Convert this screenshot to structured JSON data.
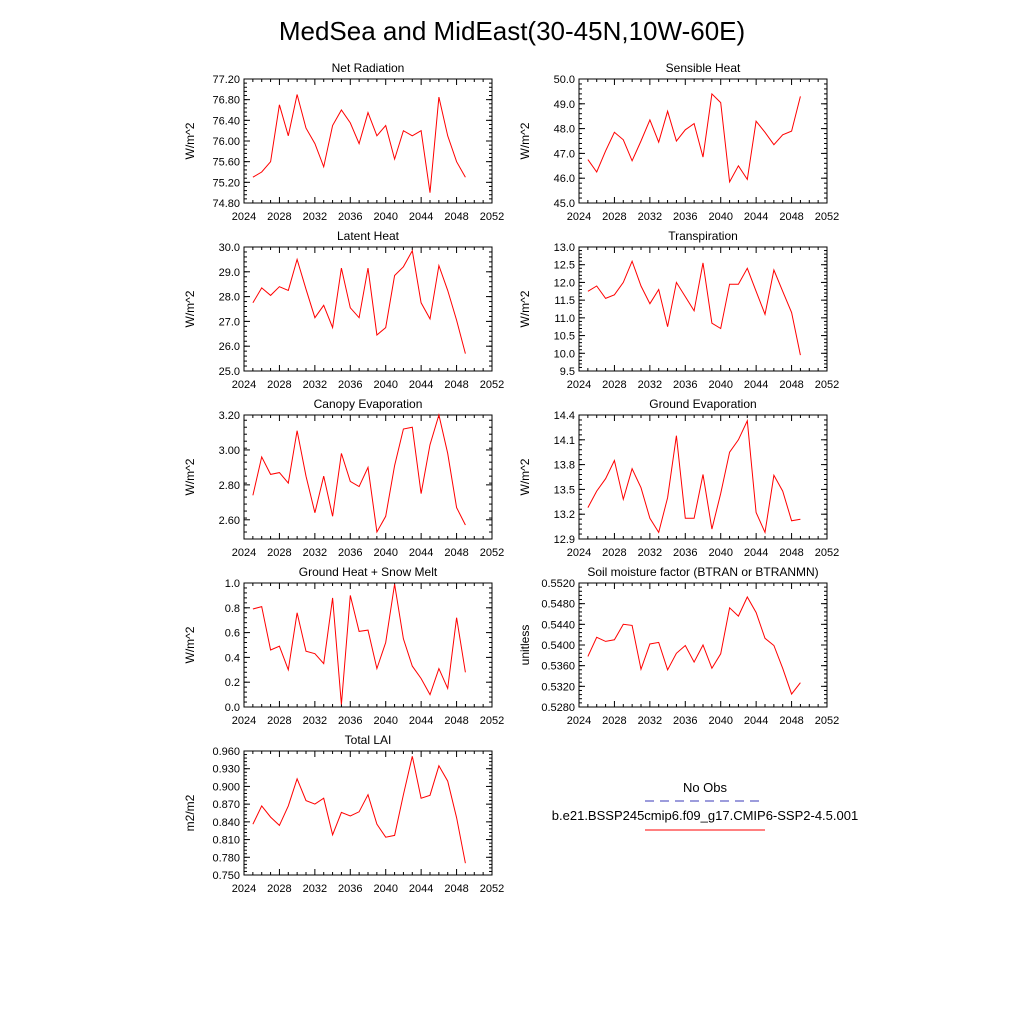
{
  "title": "MedSea and MidEast(30-45N,10W-60E)",
  "colors": {
    "model": "#ff0000",
    "obs": "#3a3ab8",
    "axis": "#000000"
  },
  "legend": {
    "obs_label": "No Obs",
    "model_label": "b.e21.BSSP245cmip6.f09_g17.CMIP6-SSP2-4.5.001"
  },
  "chart_data": [
    {
      "type": "line",
      "title": "Net Radiation",
      "ylabel": "W/m^2",
      "xlim": [
        2024,
        2052
      ],
      "ylim": [
        74.8,
        77.2
      ],
      "xticks": [
        "2024",
        "2028",
        "2032",
        "2036",
        "2040",
        "2044",
        "2048",
        "2052"
      ],
      "yticks": [
        "74.80",
        "75.20",
        "75.60",
        "76.00",
        "76.40",
        "76.80",
        "77.20"
      ],
      "x": [
        2025,
        2026,
        2027,
        2028,
        2029,
        2030,
        2031,
        2032,
        2033,
        2034,
        2035,
        2036,
        2037,
        2038,
        2039,
        2040,
        2041,
        2042,
        2043,
        2044,
        2045,
        2046,
        2047,
        2048,
        2049
      ],
      "series": [
        {
          "values": [
            75.3,
            75.4,
            75.6,
            76.7,
            76.1,
            76.9,
            76.25,
            75.95,
            75.5,
            76.3,
            76.6,
            76.35,
            75.95,
            76.55,
            76.1,
            76.3,
            75.65,
            76.2,
            76.1,
            76.2,
            75.0,
            76.85,
            76.1,
            75.6,
            75.3
          ]
        }
      ]
    },
    {
      "type": "line",
      "title": "Sensible Heat",
      "ylabel": "W/m^2",
      "xlim": [
        2024,
        2052
      ],
      "ylim": [
        45.0,
        50.0
      ],
      "xticks": [
        "2024",
        "2028",
        "2032",
        "2036",
        "2040",
        "2044",
        "2048",
        "2052"
      ],
      "yticks": [
        "45.0",
        "46.0",
        "47.0",
        "48.0",
        "49.0",
        "50.0"
      ],
      "x": [
        2025,
        2026,
        2027,
        2028,
        2029,
        2030,
        2031,
        2032,
        2033,
        2034,
        2035,
        2036,
        2037,
        2038,
        2039,
        2040,
        2041,
        2042,
        2043,
        2044,
        2045,
        2046,
        2047,
        2048,
        2049
      ],
      "series": [
        {
          "values": [
            46.75,
            46.25,
            47.1,
            47.85,
            47.55,
            46.7,
            47.5,
            48.35,
            47.45,
            48.7,
            47.5,
            47.95,
            48.2,
            46.85,
            49.4,
            49.05,
            45.85,
            46.5,
            45.95,
            48.3,
            47.85,
            47.35,
            47.75,
            47.9,
            49.3
          ]
        }
      ]
    },
    {
      "type": "line",
      "title": "Latent Heat",
      "ylabel": "W/m^2",
      "xlim": [
        2024,
        2052
      ],
      "ylim": [
        25.0,
        30.0
      ],
      "xticks": [
        "2024",
        "2028",
        "2032",
        "2036",
        "2040",
        "2044",
        "2048",
        "2052"
      ],
      "yticks": [
        "25.0",
        "26.0",
        "27.0",
        "28.0",
        "29.0",
        "30.0"
      ],
      "x": [
        2025,
        2026,
        2027,
        2028,
        2029,
        2030,
        2031,
        2032,
        2033,
        2034,
        2035,
        2036,
        2037,
        2038,
        2039,
        2040,
        2041,
        2042,
        2043,
        2044,
        2045,
        2046,
        2047,
        2048,
        2049
      ],
      "series": [
        {
          "values": [
            27.75,
            28.35,
            28.05,
            28.4,
            28.25,
            29.5,
            28.3,
            27.15,
            27.65,
            26.75,
            29.15,
            27.55,
            27.15,
            29.15,
            26.45,
            26.75,
            28.85,
            29.2,
            29.85,
            27.75,
            27.1,
            29.25,
            28.25,
            27.05,
            25.7
          ]
        }
      ]
    },
    {
      "type": "line",
      "title": "Transpiration",
      "ylabel": "W/m^2",
      "xlim": [
        2024,
        2052
      ],
      "ylim": [
        9.5,
        13.0
      ],
      "xticks": [
        "2024",
        "2028",
        "2032",
        "2036",
        "2040",
        "2044",
        "2048",
        "2052"
      ],
      "yticks": [
        "9.5",
        "10.0",
        "10.5",
        "11.0",
        "11.5",
        "12.0",
        "12.5",
        "13.0"
      ],
      "x": [
        2025,
        2026,
        2027,
        2028,
        2029,
        2030,
        2031,
        2032,
        2033,
        2034,
        2035,
        2036,
        2037,
        2038,
        2039,
        2040,
        2041,
        2042,
        2043,
        2044,
        2045,
        2046,
        2047,
        2048,
        2049
      ],
      "series": [
        {
          "values": [
            11.75,
            11.9,
            11.55,
            11.65,
            12.0,
            12.6,
            11.9,
            11.4,
            11.8,
            10.75,
            12.0,
            11.6,
            11.2,
            12.55,
            10.85,
            10.7,
            11.95,
            11.95,
            12.4,
            11.75,
            11.1,
            12.35,
            11.75,
            11.15,
            9.95
          ]
        }
      ]
    },
    {
      "type": "line",
      "title": "Canopy Evaporation",
      "ylabel": "W/m^2",
      "xlim": [
        2024,
        2052
      ],
      "ylim": [
        2.49,
        3.2
      ],
      "xticks": [
        "2024",
        "2028",
        "2032",
        "2036",
        "2040",
        "2044",
        "2048",
        "2052"
      ],
      "yticks": [
        "2.60",
        "2.80",
        "3.00",
        "3.20"
      ],
      "yticks_values": [
        2.6,
        2.8,
        3.0,
        3.2
      ],
      "x": [
        2025,
        2026,
        2027,
        2028,
        2029,
        2030,
        2031,
        2032,
        2033,
        2034,
        2035,
        2036,
        2037,
        2038,
        2039,
        2040,
        2041,
        2042,
        2043,
        2044,
        2045,
        2046,
        2047,
        2048,
        2049
      ],
      "series": [
        {
          "values": [
            2.74,
            2.96,
            2.86,
            2.87,
            2.81,
            3.11,
            2.85,
            2.64,
            2.85,
            2.62,
            2.98,
            2.82,
            2.79,
            2.9,
            2.53,
            2.62,
            2.91,
            3.12,
            3.13,
            2.75,
            3.03,
            3.2,
            2.98,
            2.67,
            2.57
          ]
        }
      ]
    },
    {
      "type": "line",
      "title": "Ground Evaporation",
      "ylabel": "W/m^2",
      "xlim": [
        2024,
        2052
      ],
      "ylim": [
        12.9,
        14.4
      ],
      "xticks": [
        "2024",
        "2028",
        "2032",
        "2036",
        "2040",
        "2044",
        "2048",
        "2052"
      ],
      "yticks": [
        "12.9",
        "13.2",
        "13.5",
        "13.8",
        "14.1",
        "14.4"
      ],
      "x": [
        2025,
        2026,
        2027,
        2028,
        2029,
        2030,
        2031,
        2032,
        2033,
        2034,
        2035,
        2036,
        2037,
        2038,
        2039,
        2040,
        2041,
        2042,
        2043,
        2044,
        2045,
        2046,
        2047,
        2048,
        2049
      ],
      "series": [
        {
          "values": [
            13.28,
            13.48,
            13.63,
            13.85,
            13.38,
            13.75,
            13.52,
            13.15,
            12.98,
            13.4,
            14.15,
            13.15,
            13.15,
            13.68,
            13.02,
            13.45,
            13.95,
            14.1,
            14.33,
            13.22,
            12.98,
            13.67,
            13.48,
            13.12,
            13.14
          ]
        }
      ]
    },
    {
      "type": "line",
      "title": "Ground Heat + Snow Melt",
      "ylabel": "W/m^2",
      "xlim": [
        2024,
        2052
      ],
      "ylim": [
        0.0,
        1.0
      ],
      "xticks": [
        "2024",
        "2028",
        "2032",
        "2036",
        "2040",
        "2044",
        "2048",
        "2052"
      ],
      "yticks": [
        "0.0",
        "0.2",
        "0.4",
        "0.6",
        "0.8",
        "1.0"
      ],
      "x": [
        2025,
        2026,
        2027,
        2028,
        2029,
        2030,
        2031,
        2032,
        2033,
        2034,
        2035,
        2036,
        2037,
        2038,
        2039,
        2040,
        2041,
        2042,
        2043,
        2044,
        2045,
        2046,
        2047,
        2048,
        2049
      ],
      "series": [
        {
          "values": [
            0.79,
            0.81,
            0.46,
            0.49,
            0.3,
            0.76,
            0.45,
            0.43,
            0.35,
            0.88,
            0.02,
            0.9,
            0.61,
            0.62,
            0.31,
            0.52,
            0.99,
            0.55,
            0.33,
            0.23,
            0.1,
            0.31,
            0.15,
            0.72,
            0.28
          ]
        }
      ]
    },
    {
      "type": "line",
      "title": "Soil moisture factor (BTRAN or BTRANMN)",
      "ylabel": "unitless",
      "xlim": [
        2024,
        2052
      ],
      "ylim": [
        0.528,
        0.552
      ],
      "xticks": [
        "2024",
        "2028",
        "2032",
        "2036",
        "2040",
        "2044",
        "2048",
        "2052"
      ],
      "yticks": [
        "0.5280",
        "0.5320",
        "0.5360",
        "0.5400",
        "0.5440",
        "0.5480",
        "0.5520"
      ],
      "x": [
        2025,
        2026,
        2027,
        2028,
        2029,
        2030,
        2031,
        2032,
        2033,
        2034,
        2035,
        2036,
        2037,
        2038,
        2039,
        2040,
        2041,
        2042,
        2043,
        2044,
        2045,
        2046,
        2047,
        2048,
        2049
      ],
      "series": [
        {
          "values": [
            0.5378,
            0.5415,
            0.5407,
            0.541,
            0.544,
            0.5438,
            0.5353,
            0.5402,
            0.5405,
            0.5352,
            0.5384,
            0.5399,
            0.5367,
            0.54,
            0.5355,
            0.5383,
            0.5472,
            0.5456,
            0.5493,
            0.5463,
            0.5413,
            0.5399,
            0.5355,
            0.5305,
            0.5327
          ]
        }
      ]
    },
    {
      "type": "line",
      "title": "Total LAI",
      "ylabel": "m2/m2",
      "xlim": [
        2024,
        2052
      ],
      "ylim": [
        0.75,
        0.96
      ],
      "xticks": [
        "2024",
        "2028",
        "2032",
        "2036",
        "2040",
        "2044",
        "2048",
        "2052"
      ],
      "yticks": [
        "0.750",
        "0.780",
        "0.810",
        "0.840",
        "0.870",
        "0.900",
        "0.930",
        "0.960"
      ],
      "x": [
        2025,
        2026,
        2027,
        2028,
        2029,
        2030,
        2031,
        2032,
        2033,
        2034,
        2035,
        2036,
        2037,
        2038,
        2039,
        2040,
        2041,
        2042,
        2043,
        2044,
        2045,
        2046,
        2047,
        2048,
        2049
      ],
      "series": [
        {
          "values": [
            0.836,
            0.867,
            0.848,
            0.834,
            0.867,
            0.913,
            0.876,
            0.87,
            0.88,
            0.818,
            0.856,
            0.85,
            0.857,
            0.886,
            0.836,
            0.814,
            0.817,
            0.886,
            0.951,
            0.88,
            0.885,
            0.935,
            0.909,
            0.847,
            0.77
          ]
        }
      ]
    }
  ]
}
